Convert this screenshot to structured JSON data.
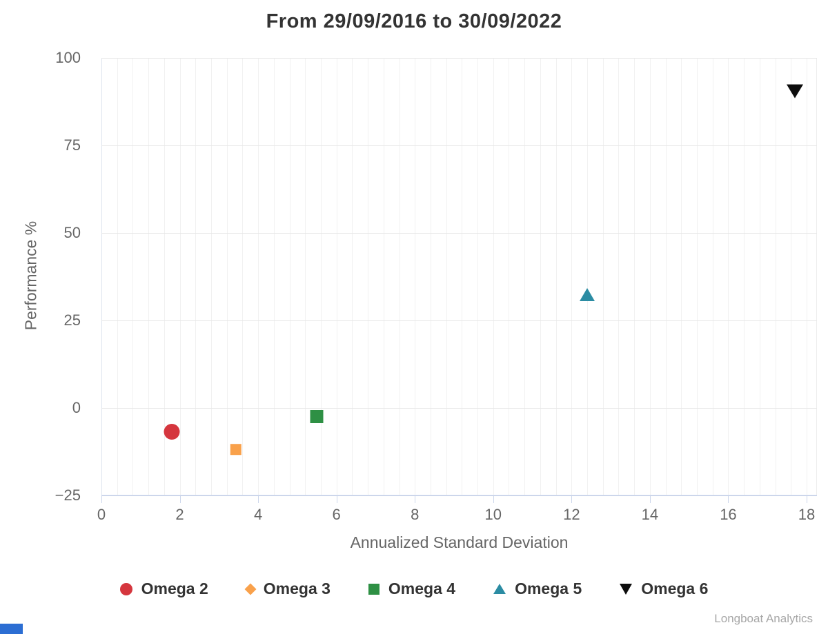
{
  "title": "From 29/09/2016 to 30/09/2022",
  "credits": "Longboat Analytics",
  "bottom_left_fragment_color": "#2c6ed3",
  "chart_data": {
    "type": "scatter",
    "title": "From 29/09/2016 to 30/09/2022",
    "xlabel": "Annualized Standard Deviation",
    "ylabel": "Performance %",
    "xlim": [
      0,
      18.3
    ],
    "ylim": [
      -25,
      100
    ],
    "xticks": [
      0,
      2,
      4,
      6,
      8,
      10,
      12,
      14,
      16,
      18
    ],
    "yticks": [
      -25,
      0,
      25,
      50,
      75,
      100
    ],
    "minor_x_gridline_interval": 0.4,
    "grid": true,
    "legend_position": "bottom",
    "axis_color": "#ccd6eb",
    "series": [
      {
        "name": "Omega 2",
        "marker": "circle",
        "color": "#d5363e",
        "points": [
          {
            "x": 1.8,
            "y": -7.3
          }
        ]
      },
      {
        "name": "Omega 3",
        "marker": "diamond",
        "color": "#f9a14b",
        "points": [
          {
            "x": 3.4,
            "y": -12.3
          }
        ]
      },
      {
        "name": "Omega 4",
        "marker": "square",
        "color": "#2e9044",
        "points": [
          {
            "x": 5.5,
            "y": -3
          }
        ]
      },
      {
        "name": "Omega 5",
        "marker": "triangle-up",
        "color": "#2b8ca3",
        "points": [
          {
            "x": 12.4,
            "y": 31.8
          }
        ]
      },
      {
        "name": "Omega 6",
        "marker": "triangle-down",
        "color": "#0d0d0d",
        "points": [
          {
            "x": 17.7,
            "y": 90
          }
        ]
      }
    ]
  }
}
